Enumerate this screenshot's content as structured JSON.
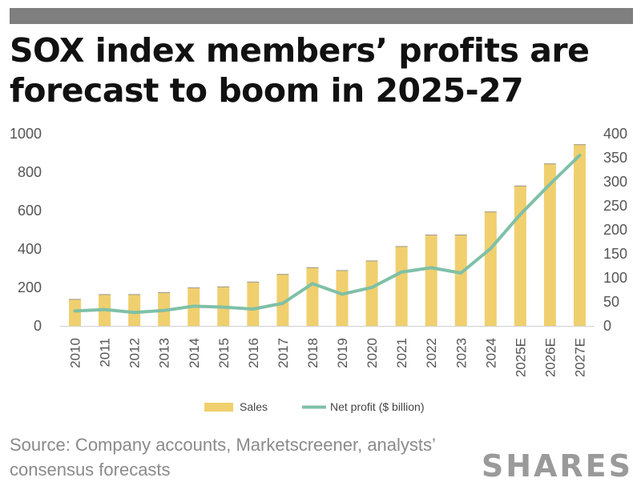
{
  "title": "SOX index members’ profits are forecast to boom in 2025-27",
  "source": "Source: Company accounts, Marketscreener, analysts’ consensus forecasts",
  "logo": "SHARES",
  "colors": {
    "sales": "#f0cf6e",
    "profit": "#7fc0a6",
    "bar_top": "#9a9a9a"
  },
  "chart_data": {
    "type": "bar",
    "categories": [
      "2010",
      "2011",
      "2012",
      "2013",
      "2014",
      "2015",
      "2016",
      "2017",
      "2018",
      "2019",
      "2020",
      "2021",
      "2022",
      "2023",
      "2024",
      "2025E",
      "2026E",
      "2027E"
    ],
    "series": [
      {
        "name": "Sales",
        "type": "bar",
        "axis": "left",
        "values": [
          140,
          165,
          165,
          175,
          200,
          205,
          230,
          270,
          305,
          290,
          340,
          415,
          475,
          475,
          595,
          730,
          845,
          945
        ]
      },
      {
        "name": "Net profit ($ billion)",
        "type": "line",
        "axis": "right",
        "values": [
          31,
          34,
          28,
          32,
          41,
          39,
          35,
          47,
          88,
          66,
          80,
          112,
          121,
          110,
          161,
          232,
          295,
          355
        ]
      }
    ],
    "ylim_left": [
      0,
      1000
    ],
    "ylim_right": [
      0,
      400
    ],
    "yticks_left": [
      0,
      200,
      400,
      600,
      800,
      1000
    ],
    "yticks_right": [
      0,
      50,
      100,
      150,
      200,
      250,
      300,
      350,
      400
    ],
    "legend_position": "bottom"
  }
}
